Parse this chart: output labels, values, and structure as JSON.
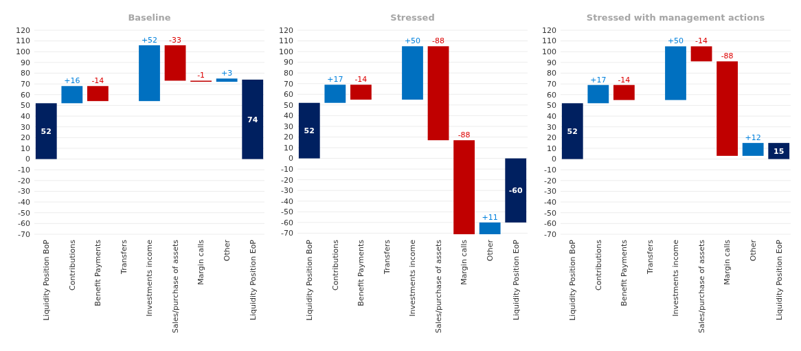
{
  "chart_data": [
    {
      "type": "bar",
      "title": "Baseline",
      "categories": [
        "Liquidity Position BoP",
        "Contributions",
        "Benefit Payments",
        "Transfers",
        "Investments income",
        "Sales/purchase of assets",
        "Margin calls",
        "Other",
        "Liquidity Position EoP"
      ],
      "values": [
        52,
        16,
        -14,
        null,
        52,
        -33,
        -1,
        3,
        74
      ],
      "base": [
        0,
        52,
        68,
        null,
        54,
        106,
        73,
        72,
        0
      ],
      "colors": [
        "#002060",
        "#0070c0",
        "#c00000",
        null,
        "#0070c0",
        "#c00000",
        "#c00000",
        "#0070c0",
        "#002060"
      ],
      "value_labels": [
        "52",
        "+16",
        "-14",
        null,
        "+52",
        "-33",
        "-1",
        "+3",
        "74"
      ],
      "ylim": [
        -70,
        120
      ],
      "yticks": [
        -70,
        -60,
        -50,
        -40,
        -30,
        -20,
        -10,
        0,
        10,
        20,
        30,
        40,
        50,
        60,
        70,
        80,
        90,
        100,
        110,
        120
      ],
      "grid": "y"
    },
    {
      "type": "bar",
      "title": "Stressed",
      "categories": [
        "Liquidity Position BoP",
        "Contributions",
        "Benefit Payments",
        "Transfers",
        "Investments income",
        "Sales/purchase of assets",
        "Margin calls",
        "Other",
        "Liquidity Position EoP"
      ],
      "values": [
        52,
        17,
        -14,
        null,
        50,
        -88,
        -88,
        11,
        -60
      ],
      "base": [
        0,
        52,
        69,
        null,
        55,
        105,
        17,
        -71,
        0
      ],
      "colors": [
        "#002060",
        "#0070c0",
        "#c00000",
        null,
        "#0070c0",
        "#c00000",
        "#c00000",
        "#0070c0",
        "#002060"
      ],
      "value_labels": [
        "52",
        "+17",
        "-14",
        null,
        "+50",
        "-88",
        "-88",
        "+11",
        "-60"
      ],
      "ylim": [
        -71,
        120
      ],
      "yticks": [
        -70,
        -60,
        -50,
        -40,
        -30,
        -20,
        -10,
        0,
        10,
        20,
        30,
        40,
        50,
        60,
        70,
        80,
        90,
        100,
        110,
        120
      ],
      "grid": "y"
    },
    {
      "type": "bar",
      "title": "Stressed with management actions",
      "categories": [
        "Liquidity Position BoP",
        "Contributions",
        "Benefit Payments",
        "Transfers",
        "Investments income",
        "Sales/purchase of assets",
        "Margin calls",
        "Other",
        "Liquidity Position EoP"
      ],
      "values": [
        52,
        17,
        -14,
        null,
        50,
        -14,
        -88,
        12,
        15
      ],
      "base": [
        0,
        52,
        69,
        null,
        55,
        105,
        91,
        3,
        0
      ],
      "colors": [
        "#002060",
        "#0070c0",
        "#c00000",
        null,
        "#0070c0",
        "#c00000",
        "#c00000",
        "#0070c0",
        "#002060"
      ],
      "value_labels": [
        "52",
        "+17",
        "-14",
        null,
        "+50",
        "-14",
        "-88",
        "+12",
        "15"
      ],
      "ylim": [
        -70,
        120
      ],
      "yticks": [
        -70,
        -60,
        -50,
        -40,
        -30,
        -20,
        -10,
        0,
        10,
        20,
        30,
        40,
        50,
        60,
        70,
        80,
        90,
        100,
        110,
        120
      ],
      "grid": "y"
    }
  ]
}
